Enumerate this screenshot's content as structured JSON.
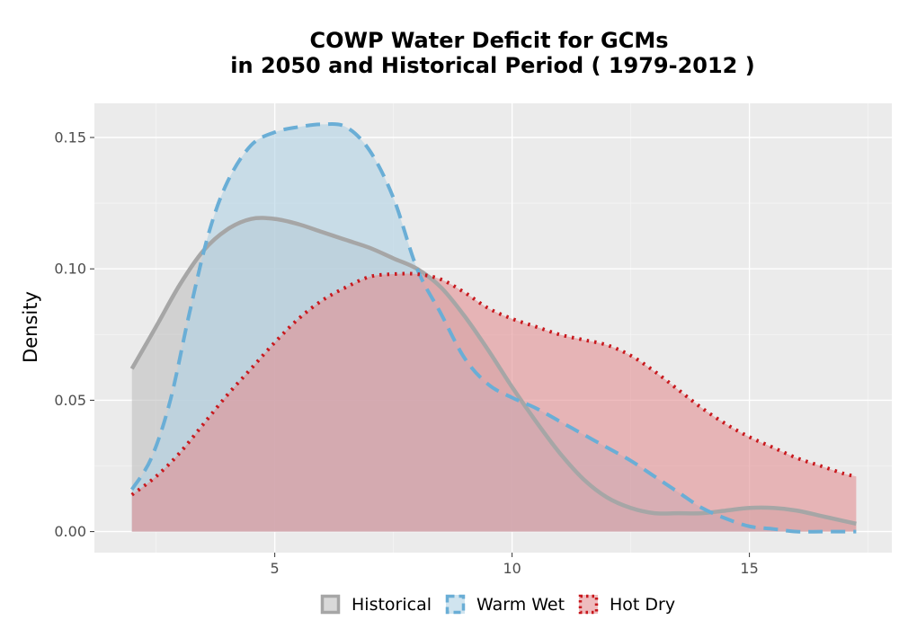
{
  "chart_data": {
    "type": "area",
    "title_line1": "COWP  Water Deficit for GCMs",
    "title_line2": "in 2050 and Historical Period ( 1979-2012 )",
    "xlabel": "",
    "ylabel": "Density",
    "xlim": [
      1.2,
      18.0
    ],
    "ylim": [
      -0.008,
      0.163
    ],
    "x_ticks": [
      5,
      10,
      15
    ],
    "x_tick_labels": [
      "5",
      "10",
      "15"
    ],
    "y_ticks": [
      0,
      0.05,
      0.1,
      0.15
    ],
    "y_tick_labels": [
      "0.00",
      "0.05",
      "0.10",
      "0.15"
    ],
    "grid": true,
    "legend_position": "bottom",
    "series": [
      {
        "name": "Historical",
        "line_style": "solid",
        "line_color": "#a6a6a6",
        "fill_color": "#bfbfbf",
        "x": [
          1.99,
          2.5,
          3,
          3.5,
          4,
          4.5,
          5,
          5.5,
          6,
          6.5,
          7,
          7.5,
          8,
          8.5,
          9,
          9.5,
          10,
          10.5,
          11,
          11.5,
          12,
          12.5,
          13,
          13.5,
          14,
          14.5,
          15,
          15.5,
          16,
          16.5,
          17,
          17.25
        ],
        "values": [
          0.062,
          0.078,
          0.094,
          0.107,
          0.115,
          0.119,
          0.119,
          0.117,
          0.114,
          0.111,
          0.108,
          0.104,
          0.1,
          0.093,
          0.082,
          0.069,
          0.055,
          0.042,
          0.03,
          0.02,
          0.013,
          0.009,
          0.007,
          0.007,
          0.007,
          0.008,
          0.009,
          0.009,
          0.008,
          0.006,
          0.004,
          0.003
        ]
      },
      {
        "name": "Warm Wet",
        "line_style": "dashed",
        "line_color": "#6aaed6",
        "fill_color": "#b0d2e4",
        "x": [
          1.99,
          2.4,
          2.8,
          3.2,
          3.6,
          4,
          4.5,
          5,
          5.5,
          6,
          6.5,
          7,
          7.5,
          8,
          8.5,
          9,
          9.5,
          10,
          10.5,
          11,
          11.5,
          12,
          12.5,
          13,
          13.5,
          14,
          14.5,
          15,
          15.5,
          16,
          16.5,
          17.25
        ],
        "values": [
          0.016,
          0.028,
          0.05,
          0.083,
          0.113,
          0.133,
          0.147,
          0.152,
          0.154,
          0.155,
          0.154,
          0.145,
          0.127,
          0.1,
          0.083,
          0.066,
          0.056,
          0.051,
          0.047,
          0.042,
          0.037,
          0.032,
          0.027,
          0.021,
          0.015,
          0.009,
          0.005,
          0.002,
          0.001,
          0.0,
          0.0,
          0.0
        ]
      },
      {
        "name": "Hot Dry",
        "line_style": "dotted",
        "line_color": "#c8181d",
        "fill_color": "#e28f92",
        "x": [
          1.99,
          2.5,
          3,
          3.5,
          4,
          4.5,
          5,
          5.5,
          6,
          6.5,
          7,
          7.5,
          8,
          8.5,
          9,
          9.5,
          10,
          10.5,
          11,
          11.5,
          12,
          12.5,
          13,
          13.5,
          14,
          14.5,
          15,
          15.5,
          16,
          16.5,
          17,
          17.25
        ],
        "values": [
          0.014,
          0.021,
          0.03,
          0.041,
          0.052,
          0.062,
          0.072,
          0.081,
          0.088,
          0.093,
          0.097,
          0.098,
          0.098,
          0.096,
          0.091,
          0.085,
          0.081,
          0.078,
          0.075,
          0.073,
          0.071,
          0.067,
          0.061,
          0.054,
          0.047,
          0.041,
          0.036,
          0.032,
          0.028,
          0.025,
          0.022,
          0.021
        ]
      }
    ]
  }
}
